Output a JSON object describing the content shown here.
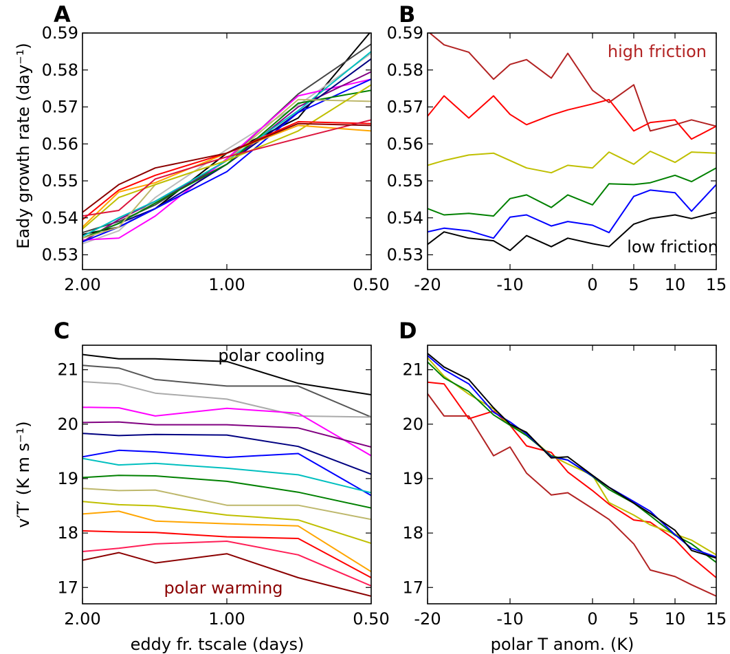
{
  "panels": {
    "A": {
      "letter": "A",
      "ylabel": "Eady growth rate (day⁻¹)",
      "xticks": [
        "2.00",
        "1.00",
        "0.50"
      ],
      "yticks": [
        "0.53",
        "0.54",
        "0.55",
        "0.56",
        "0.57",
        "0.58",
        "0.59"
      ]
    },
    "B": {
      "letter": "B",
      "xticks": [
        "-20",
        "-10",
        "0",
        "5",
        "10",
        "15"
      ],
      "yticks": [
        "0.53",
        "0.54",
        "0.55",
        "0.56",
        "0.57",
        "0.58",
        "0.59"
      ],
      "annotations": [
        "high friction",
        "low friction"
      ]
    },
    "C": {
      "letter": "C",
      "ylabel": "v′T′ (K m s⁻¹)",
      "xlabel": "eddy fr. tscale (days)",
      "xticks": [
        "2.00",
        "1.00",
        "0.50"
      ],
      "yticks": [
        "17",
        "18",
        "19",
        "20",
        "21"
      ],
      "annotations": [
        "polar cooling",
        "polar warming"
      ]
    },
    "D": {
      "letter": "D",
      "xlabel": "polar T anom. (K)",
      "xticks": [
        "-20",
        "-10",
        "0",
        "5",
        "10",
        "15"
      ],
      "yticks": [
        "17",
        "18",
        "19",
        "20",
        "21"
      ]
    }
  },
  "chart_data": [
    {
      "panel": "A",
      "type": "line",
      "x": [
        2.0,
        1.68,
        1.41,
        1.0,
        0.71,
        0.5
      ],
      "xlim": [
        2.0,
        0.5
      ],
      "xscale": "log",
      "ylim": [
        0.526,
        0.59
      ],
      "series": [
        {
          "color": "#000000",
          "values": [
            0.5355,
            0.5375,
            0.5425,
            0.5575,
            0.567,
            0.5905
          ]
        },
        {
          "color": "#444444",
          "values": [
            0.536,
            0.539,
            0.5435,
            0.5555,
            0.5735,
            0.587
          ]
        },
        {
          "color": "#bbbbbb",
          "values": [
            0.533,
            0.5365,
            0.5455,
            0.5585,
            0.5705,
            0.5845
          ]
        },
        {
          "color": "#ff00ff",
          "values": [
            0.534,
            0.5345,
            0.5405,
            0.556,
            0.573,
            0.5775
          ]
        },
        {
          "color": "#800080",
          "values": [
            0.5335,
            0.5395,
            0.5445,
            0.5545,
            0.57,
            0.5795
          ]
        },
        {
          "color": "#000080",
          "values": [
            0.5345,
            0.5385,
            0.5425,
            0.5545,
            0.5685,
            0.583
          ]
        },
        {
          "color": "#0000ff",
          "values": [
            0.5335,
            0.5375,
            0.5425,
            0.5525,
            0.5685,
            0.5775
          ]
        },
        {
          "color": "#00bfbf",
          "values": [
            0.535,
            0.54,
            0.5445,
            0.5555,
            0.569,
            0.585
          ]
        },
        {
          "color": "#008000",
          "values": [
            0.5345,
            0.5385,
            0.544,
            0.5545,
            0.571,
            0.5745
          ]
        },
        {
          "color": "#bdb76b",
          "values": [
            0.5345,
            0.5375,
            0.549,
            0.5555,
            0.572,
            0.5715
          ]
        },
        {
          "color": "#bfbf00",
          "values": [
            0.537,
            0.5455,
            0.549,
            0.5555,
            0.5635,
            0.576
          ]
        },
        {
          "color": "#ffa500",
          "values": [
            0.5375,
            0.547,
            0.5495,
            0.5575,
            0.565,
            0.5635
          ]
        },
        {
          "color": "#ff0000",
          "values": [
            0.5395,
            0.5475,
            0.5515,
            0.5575,
            0.566,
            0.5655
          ]
        },
        {
          "color": "#dc143c",
          "values": [
            0.5405,
            0.542,
            0.5505,
            0.5565,
            0.5615,
            0.5665
          ]
        },
        {
          "color": "#8b0000",
          "values": [
            0.5415,
            0.549,
            0.5535,
            0.5575,
            0.5655,
            0.565
          ]
        }
      ]
    },
    {
      "panel": "B",
      "type": "line",
      "x": [
        -20,
        -18,
        -15,
        -12,
        -10,
        -8,
        -5,
        -3,
        0,
        2,
        5,
        7,
        10,
        12,
        15
      ],
      "xlim": [
        -20,
        15
      ],
      "ylim": [
        0.526,
        0.59
      ],
      "series": [
        {
          "color": "#b22222",
          "values": [
            0.5905,
            0.5868,
            0.5848,
            0.5775,
            0.5815,
            0.5828,
            0.5778,
            0.5845,
            0.5745,
            0.5712,
            0.576,
            0.5635,
            0.5652,
            0.5665,
            0.5648
          ]
        },
        {
          "color": "#ff0000",
          "values": [
            0.5675,
            0.573,
            0.567,
            0.573,
            0.568,
            0.5652,
            0.5678,
            0.5692,
            0.5708,
            0.572,
            0.5635,
            0.5658,
            0.5665,
            0.5613,
            0.5648
          ]
        },
        {
          "color": "#bfbf00",
          "values": [
            0.5542,
            0.5555,
            0.557,
            0.5575,
            0.5555,
            0.5535,
            0.5522,
            0.5542,
            0.5535,
            0.5578,
            0.5545,
            0.558,
            0.555,
            0.5578,
            0.5575
          ]
        },
        {
          "color": "#008000",
          "values": [
            0.5425,
            0.5408,
            0.5412,
            0.5405,
            0.5452,
            0.5462,
            0.5428,
            0.5462,
            0.5435,
            0.5492,
            0.549,
            0.5495,
            0.5515,
            0.5498,
            0.5535
          ]
        },
        {
          "color": "#0000ff",
          "values": [
            0.5362,
            0.5372,
            0.5365,
            0.5345,
            0.5402,
            0.5408,
            0.5378,
            0.539,
            0.538,
            0.536,
            0.5458,
            0.5475,
            0.5468,
            0.5418,
            0.549
          ]
        },
        {
          "color": "#000000",
          "values": [
            0.5328,
            0.5362,
            0.5345,
            0.5338,
            0.5312,
            0.5352,
            0.5322,
            0.5345,
            0.533,
            0.5322,
            0.5383,
            0.5398,
            0.5408,
            0.5398,
            0.5415
          ]
        }
      ]
    },
    {
      "panel": "C",
      "type": "line",
      "x": [
        2.0,
        1.68,
        1.41,
        1.0,
        0.71,
        0.5
      ],
      "xlim": [
        2.0,
        0.5
      ],
      "xscale": "log",
      "ylim": [
        16.7,
        21.45
      ],
      "series": [
        {
          "color": "#000000",
          "values": [
            21.28,
            21.2,
            21.2,
            21.15,
            20.75,
            20.54
          ]
        },
        {
          "color": "#555555",
          "values": [
            21.08,
            21.03,
            20.82,
            20.7,
            20.7,
            20.13
          ]
        },
        {
          "color": "#aaaaaa",
          "values": [
            20.78,
            20.74,
            20.57,
            20.46,
            20.15,
            20.13
          ]
        },
        {
          "color": "#ff00ff",
          "values": [
            20.31,
            20.3,
            20.15,
            20.29,
            20.2,
            19.42
          ]
        },
        {
          "color": "#800080",
          "values": [
            20.03,
            20.04,
            19.99,
            19.99,
            19.93,
            19.58
          ]
        },
        {
          "color": "#000080",
          "values": [
            19.83,
            19.79,
            19.81,
            19.8,
            19.59,
            19.08
          ]
        },
        {
          "color": "#0000ff",
          "values": [
            19.4,
            19.52,
            19.49,
            19.39,
            19.46,
            18.69
          ]
        },
        {
          "color": "#00bfbf",
          "values": [
            19.37,
            19.25,
            19.28,
            19.19,
            19.07,
            18.74
          ]
        },
        {
          "color": "#008000",
          "values": [
            19.02,
            19.06,
            19.05,
            18.95,
            18.75,
            18.46
          ]
        },
        {
          "color": "#bdb76b",
          "values": [
            18.82,
            18.78,
            18.79,
            18.51,
            18.51,
            18.25
          ]
        },
        {
          "color": "#bfbf00",
          "values": [
            18.58,
            18.52,
            18.5,
            18.33,
            18.24,
            17.81
          ]
        },
        {
          "color": "#ffa500",
          "values": [
            18.35,
            18.4,
            18.22,
            18.17,
            18.13,
            17.29
          ]
        },
        {
          "color": "#ff0000",
          "values": [
            18.04,
            18.02,
            18.01,
            17.93,
            17.9,
            17.18
          ]
        },
        {
          "color": "#ff1e56",
          "values": [
            17.66,
            17.72,
            17.8,
            17.85,
            17.6,
            17.03
          ]
        },
        {
          "color": "#8b0000",
          "values": [
            17.5,
            17.64,
            17.45,
            17.62,
            17.18,
            16.84
          ]
        }
      ]
    },
    {
      "panel": "D",
      "type": "line",
      "x": [
        -20,
        -18,
        -15,
        -12,
        -10,
        -8,
        -5,
        -3,
        0,
        2,
        5,
        7,
        10,
        12,
        15
      ],
      "xlim": [
        -20,
        15
      ],
      "ylim": [
        16.7,
        21.45
      ],
      "series": [
        {
          "color": "#b22222",
          "values": [
            20.56,
            20.15,
            20.15,
            19.42,
            19.58,
            19.1,
            18.7,
            18.74,
            18.45,
            18.25,
            17.8,
            17.32,
            17.2,
            17.05,
            16.84
          ]
        },
        {
          "color": "#ff0000",
          "values": [
            20.77,
            20.74,
            20.1,
            20.24,
            19.98,
            19.6,
            19.48,
            19.12,
            18.78,
            18.53,
            18.24,
            18.2,
            17.88,
            17.56,
            17.18
          ]
        },
        {
          "color": "#bfbf00",
          "values": [
            21.22,
            20.88,
            20.55,
            20.28,
            19.98,
            19.82,
            19.42,
            19.27,
            19.06,
            18.56,
            18.33,
            18.15,
            17.98,
            17.87,
            17.6
          ]
        },
        {
          "color": "#008000",
          "values": [
            21.14,
            20.85,
            20.6,
            20.17,
            19.98,
            19.79,
            19.42,
            19.34,
            19.04,
            18.8,
            18.55,
            18.32,
            17.96,
            17.8,
            17.46
          ]
        },
        {
          "color": "#0000ff",
          "values": [
            21.26,
            21.0,
            20.74,
            20.22,
            20.04,
            19.82,
            19.4,
            19.34,
            19.05,
            18.84,
            18.58,
            18.4,
            17.97,
            17.72,
            17.56
          ]
        },
        {
          "color": "#000000",
          "values": [
            21.3,
            21.05,
            20.82,
            20.3,
            20.0,
            19.85,
            19.38,
            19.4,
            19.06,
            18.84,
            18.55,
            18.36,
            18.05,
            17.68,
            17.54
          ]
        }
      ]
    }
  ]
}
